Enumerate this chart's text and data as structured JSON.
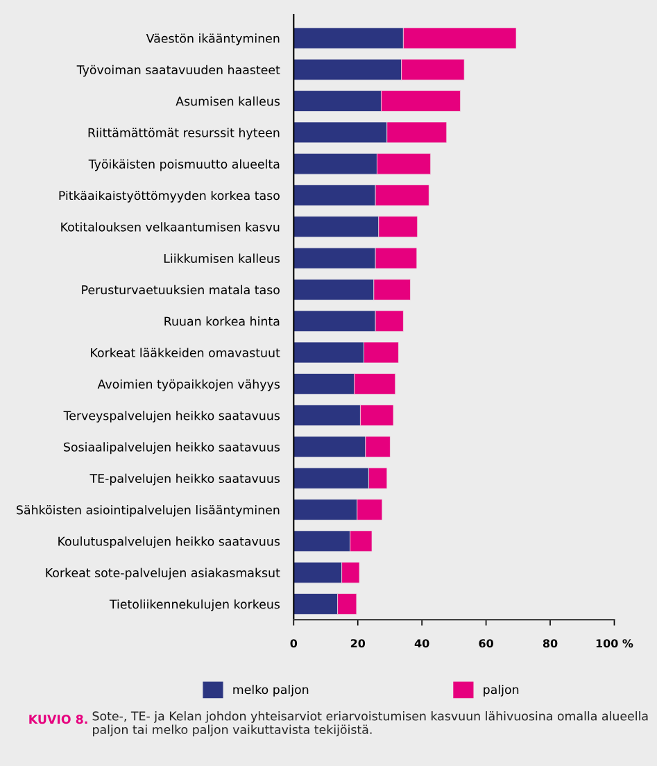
{
  "chart_data": {
    "type": "bar",
    "orientation": "horizontal",
    "stacked": true,
    "categories": [
      "Väestön ikääntyminen",
      "Työvoiman saatavuuden haasteet",
      "Asumisen kalleus",
      "Riittämättömät resurssit hyteen",
      "Työikäisten poismuutto alueelta",
      "Pitkäaikaistyöttömyyden korkea taso",
      "Kotitalouksen velkaantumisen kasvu",
      "Liikkumisen kalleus",
      "Perusturvaetuuksien matala taso",
      "Ruuan korkea hinta",
      "Korkeat lääkkeiden omavastuut",
      "Avoimien työpaikkojen vähyys",
      "Terveyspalvelujen heikko saatavuus",
      "Sosiaalipalvelujen heikko saatavuus",
      "TE-palvelujen heikko saatavuus",
      "Sähköisten asiointipalvelujen lisääntyminen",
      "Koulutuspalvelujen heikko saatavuus",
      "Korkeat sote-palvelujen asiakasmaksut",
      "Tietoliikennekulujen korkeus"
    ],
    "series": [
      {
        "name": "melko paljon",
        "color": "#2b3580",
        "values": [
          34.2,
          33.6,
          27.3,
          29.1,
          26.0,
          25.5,
          26.5,
          25.5,
          25.0,
          25.5,
          21.9,
          18.9,
          20.8,
          22.4,
          23.4,
          19.8,
          17.6,
          15.0,
          13.7
        ]
      },
      {
        "name": "paljon",
        "color": "#e6007e",
        "values": [
          35.2,
          19.6,
          24.7,
          18.6,
          16.7,
          16.7,
          12.1,
          12.9,
          11.4,
          8.7,
          10.8,
          12.8,
          10.3,
          7.7,
          5.7,
          7.8,
          6.8,
          5.5,
          5.9
        ]
      }
    ],
    "xlim": [
      0,
      100
    ],
    "xticks": [
      0,
      20,
      40,
      60,
      80,
      {
        "value": 100,
        "label": "100 %"
      }
    ],
    "grid": false,
    "legend": "bottom",
    "title": "KUVIO 8.",
    "annotations": [
      "Sote-, TE- ja Kelan johdon yhteisarviot eriarvoistumisen kasvuun lähivuosina omalla alueella paljon tai melko paljon vaikuttavista tekijöistä."
    ]
  }
}
